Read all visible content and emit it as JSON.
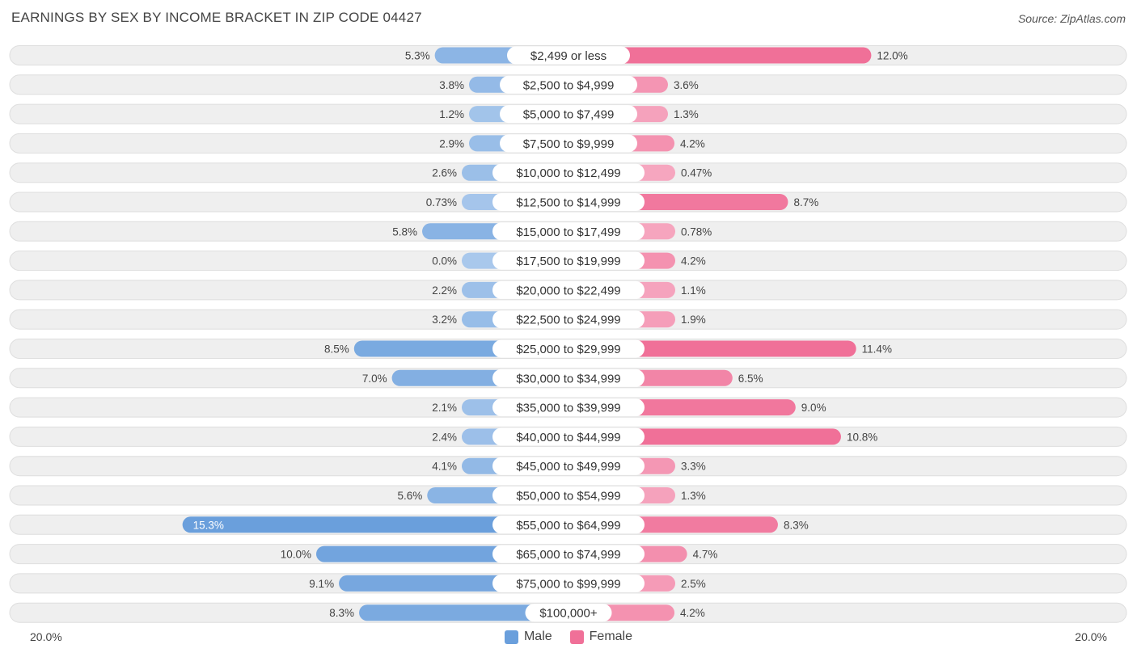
{
  "title": "EARNINGS BY SEX BY INCOME BRACKET IN ZIP CODE 04427",
  "source": "Source: ZipAtlas.com",
  "colors": {
    "male_strong": "#6a9fdc",
    "male_light": "#a9c8ec",
    "female_strong": "#f07098",
    "female_light": "#f6a9c1",
    "row_bg": "#efefef",
    "row_border": "#dedede"
  },
  "legend": {
    "male_label": "Male",
    "female_label": "Female"
  },
  "axis": {
    "left_label": "20.0%",
    "right_label": "20.0%"
  },
  "chart_data": {
    "type": "bar",
    "orientation": "horizontal-diverging",
    "title": "EARNINGS BY SEX BY INCOME BRACKET IN ZIP CODE 04427",
    "xlim": [
      -20,
      20
    ],
    "categories": [
      "$2,499 or less",
      "$2,500 to $4,999",
      "$5,000 to $7,499",
      "$7,500 to $9,999",
      "$10,000 to $12,499",
      "$12,500 to $14,999",
      "$15,000 to $17,499",
      "$17,500 to $19,999",
      "$20,000 to $22,499",
      "$22,500 to $24,999",
      "$25,000 to $29,999",
      "$30,000 to $34,999",
      "$35,000 to $39,999",
      "$40,000 to $44,999",
      "$45,000 to $49,999",
      "$50,000 to $54,999",
      "$55,000 to $64,999",
      "$65,000 to $74,999",
      "$75,000 to $99,999",
      "$100,000+"
    ],
    "series": [
      {
        "name": "Male",
        "values": [
          5.3,
          3.8,
          1.2,
          2.9,
          2.6,
          0.73,
          5.8,
          0.0,
          2.2,
          3.2,
          8.5,
          7.0,
          2.1,
          2.4,
          4.1,
          5.6,
          15.3,
          10.0,
          9.1,
          8.3
        ],
        "labels": [
          "5.3%",
          "3.8%",
          "1.2%",
          "2.9%",
          "2.6%",
          "0.73%",
          "5.8%",
          "0.0%",
          "2.2%",
          "3.2%",
          "8.5%",
          "7.0%",
          "2.1%",
          "2.4%",
          "4.1%",
          "5.6%",
          "15.3%",
          "10.0%",
          "9.1%",
          "8.3%"
        ]
      },
      {
        "name": "Female",
        "values": [
          12.0,
          3.6,
          1.3,
          4.2,
          0.47,
          8.7,
          0.78,
          4.2,
          1.1,
          1.9,
          11.4,
          6.5,
          9.0,
          10.8,
          3.3,
          1.3,
          8.3,
          4.7,
          2.5,
          4.2
        ],
        "labels": [
          "12.0%",
          "3.6%",
          "1.3%",
          "4.2%",
          "0.47%",
          "8.7%",
          "0.78%",
          "4.2%",
          "1.1%",
          "1.9%",
          "11.4%",
          "6.5%",
          "9.0%",
          "10.8%",
          "3.3%",
          "1.3%",
          "8.3%",
          "4.7%",
          "2.5%",
          "4.2%"
        ]
      }
    ]
  }
}
